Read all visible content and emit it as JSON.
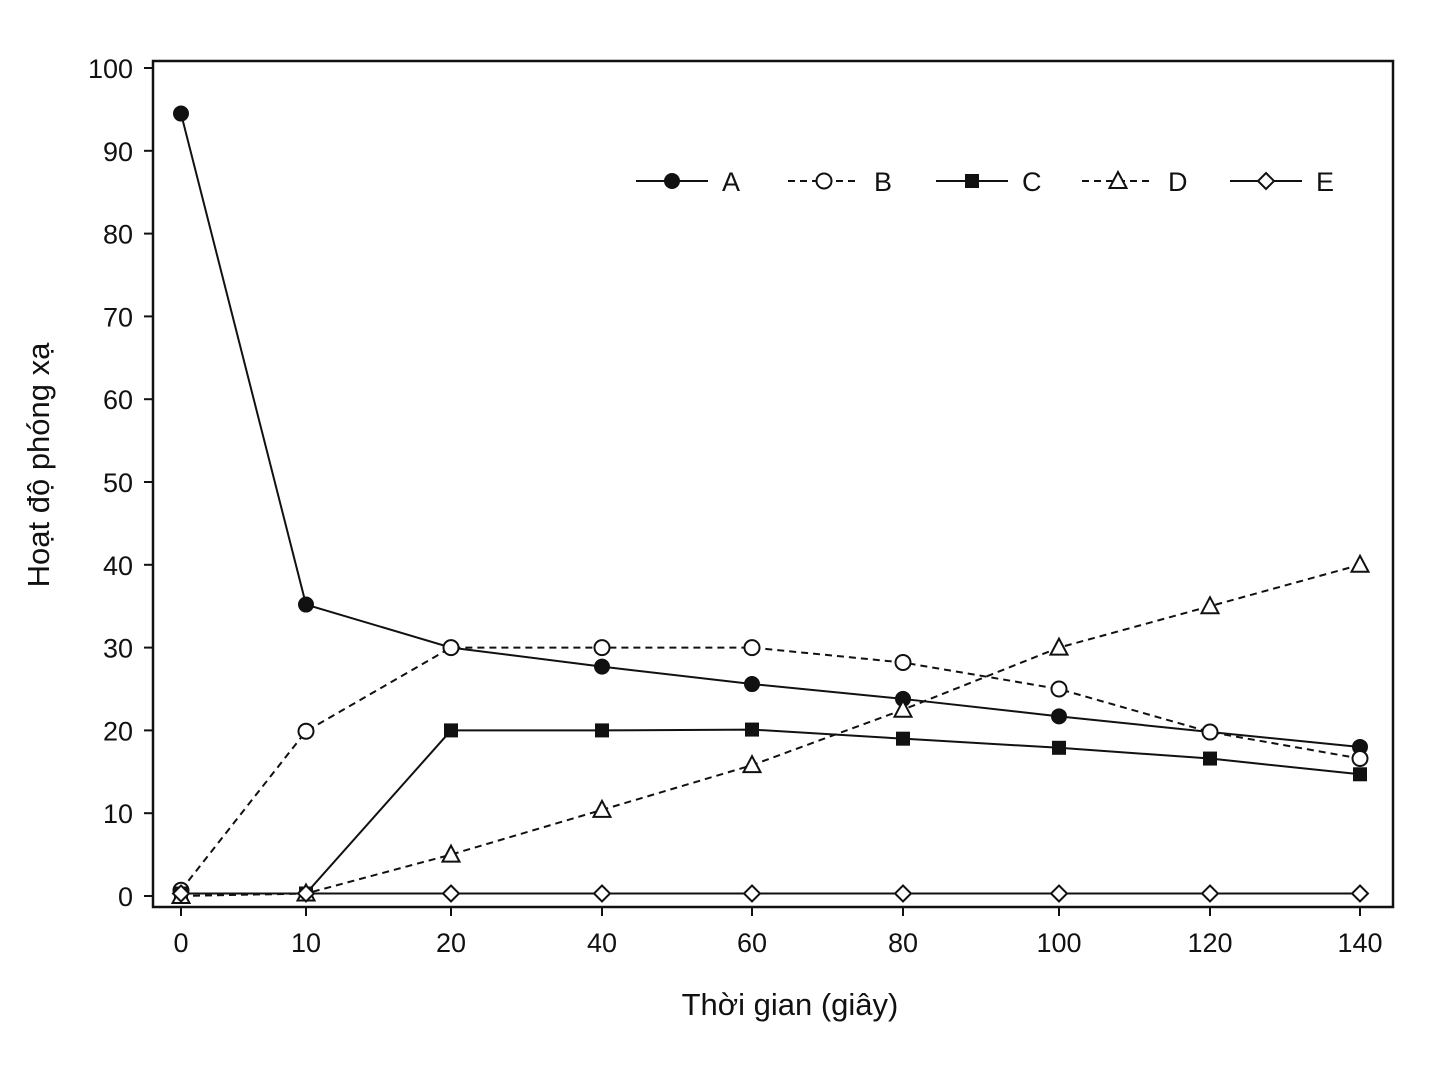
{
  "chart_data": {
    "type": "line",
    "xlabel": "Thời gian (giây)",
    "ylabel": "Hoạt độ phóng xạ",
    "categories": [
      "0",
      "10",
      "20",
      "40",
      "60",
      "80",
      "100",
      "120",
      "140"
    ],
    "ylim": [
      0,
      100
    ],
    "yticks": [
      "0",
      "10",
      "20",
      "30",
      "40",
      "50",
      "60",
      "70",
      "80",
      "90",
      "100"
    ],
    "grid": false,
    "legend_position": "top-right",
    "series": [
      {
        "name": "A",
        "marker": "filled-circle",
        "line": "solid",
        "values": [
          94.5,
          35.2,
          30,
          27.7,
          25.6,
          23.8,
          21.7,
          19.8,
          18
        ]
      },
      {
        "name": "B",
        "marker": "open-circle",
        "line": "dashed",
        "values": [
          0.7,
          19.9,
          30,
          30,
          30,
          28.2,
          25,
          19.8,
          16.6
        ]
      },
      {
        "name": "C",
        "marker": "filled-square",
        "line": "solid",
        "values": [
          0.3,
          0.3,
          20,
          20,
          20.1,
          19,
          17.9,
          16.6,
          14.7
        ]
      },
      {
        "name": "D",
        "marker": "open-triangle",
        "line": "dashed",
        "values": [
          0,
          0.3,
          5,
          10.4,
          15.8,
          22.5,
          30,
          35,
          40
        ]
      },
      {
        "name": "E",
        "marker": "open-diamond",
        "line": "solid",
        "values": [
          0.3,
          0.3,
          0.3,
          0.3,
          0.3,
          0.3,
          0.3,
          0.3,
          0.3
        ]
      }
    ]
  }
}
